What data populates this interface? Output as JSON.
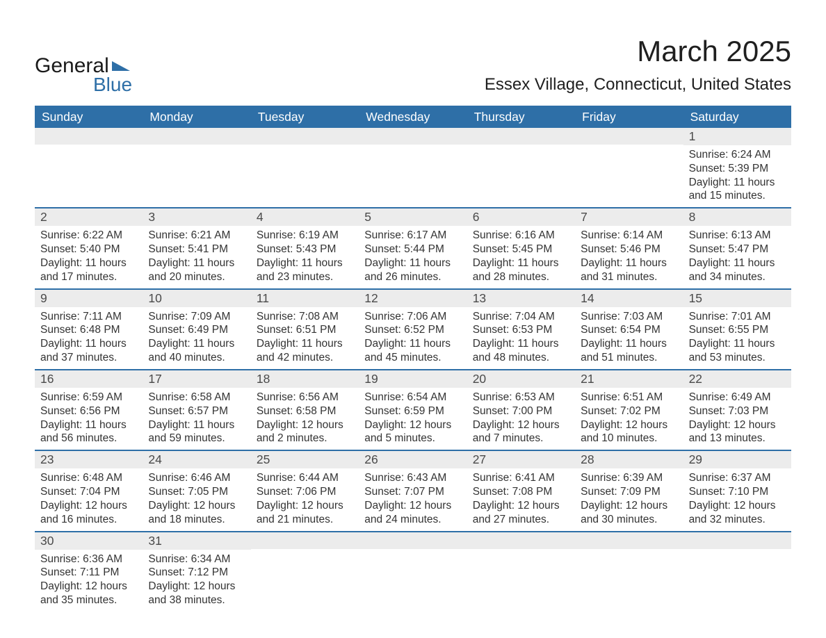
{
  "logo": {
    "word1": "General",
    "word2": "Blue",
    "word2_color": "#2e6fa7",
    "flag_color": "#2e6fa7"
  },
  "header": {
    "month_title": "March 2025",
    "location": "Essex Village, Connecticut, United States"
  },
  "colors": {
    "header_bg": "#2e6fa7",
    "header_text": "#ffffff",
    "daynum_bg": "#ececec",
    "text": "#333333",
    "week_border": "#2e6fa7",
    "page_bg": "#ffffff"
  },
  "fonts": {
    "month_title_pt": 42,
    "location_pt": 24,
    "dayname_pt": 17.5,
    "daynum_pt": 17.5,
    "details_pt": 15.5,
    "logo_pt": 30
  },
  "daynames": [
    "Sunday",
    "Monday",
    "Tuesday",
    "Wednesday",
    "Thursday",
    "Friday",
    "Saturday"
  ],
  "weeks": [
    [
      {
        "n": "",
        "sr": "",
        "ss": "",
        "dl": ""
      },
      {
        "n": "",
        "sr": "",
        "ss": "",
        "dl": ""
      },
      {
        "n": "",
        "sr": "",
        "ss": "",
        "dl": ""
      },
      {
        "n": "",
        "sr": "",
        "ss": "",
        "dl": ""
      },
      {
        "n": "",
        "sr": "",
        "ss": "",
        "dl": ""
      },
      {
        "n": "",
        "sr": "",
        "ss": "",
        "dl": ""
      },
      {
        "n": "1",
        "sr": "Sunrise: 6:24 AM",
        "ss": "Sunset: 5:39 PM",
        "dl": "Daylight: 11 hours and 15 minutes."
      }
    ],
    [
      {
        "n": "2",
        "sr": "Sunrise: 6:22 AM",
        "ss": "Sunset: 5:40 PM",
        "dl": "Daylight: 11 hours and 17 minutes."
      },
      {
        "n": "3",
        "sr": "Sunrise: 6:21 AM",
        "ss": "Sunset: 5:41 PM",
        "dl": "Daylight: 11 hours and 20 minutes."
      },
      {
        "n": "4",
        "sr": "Sunrise: 6:19 AM",
        "ss": "Sunset: 5:43 PM",
        "dl": "Daylight: 11 hours and 23 minutes."
      },
      {
        "n": "5",
        "sr": "Sunrise: 6:17 AM",
        "ss": "Sunset: 5:44 PM",
        "dl": "Daylight: 11 hours and 26 minutes."
      },
      {
        "n": "6",
        "sr": "Sunrise: 6:16 AM",
        "ss": "Sunset: 5:45 PM",
        "dl": "Daylight: 11 hours and 28 minutes."
      },
      {
        "n": "7",
        "sr": "Sunrise: 6:14 AM",
        "ss": "Sunset: 5:46 PM",
        "dl": "Daylight: 11 hours and 31 minutes."
      },
      {
        "n": "8",
        "sr": "Sunrise: 6:13 AM",
        "ss": "Sunset: 5:47 PM",
        "dl": "Daylight: 11 hours and 34 minutes."
      }
    ],
    [
      {
        "n": "9",
        "sr": "Sunrise: 7:11 AM",
        "ss": "Sunset: 6:48 PM",
        "dl": "Daylight: 11 hours and 37 minutes."
      },
      {
        "n": "10",
        "sr": "Sunrise: 7:09 AM",
        "ss": "Sunset: 6:49 PM",
        "dl": "Daylight: 11 hours and 40 minutes."
      },
      {
        "n": "11",
        "sr": "Sunrise: 7:08 AM",
        "ss": "Sunset: 6:51 PM",
        "dl": "Daylight: 11 hours and 42 minutes."
      },
      {
        "n": "12",
        "sr": "Sunrise: 7:06 AM",
        "ss": "Sunset: 6:52 PM",
        "dl": "Daylight: 11 hours and 45 minutes."
      },
      {
        "n": "13",
        "sr": "Sunrise: 7:04 AM",
        "ss": "Sunset: 6:53 PM",
        "dl": "Daylight: 11 hours and 48 minutes."
      },
      {
        "n": "14",
        "sr": "Sunrise: 7:03 AM",
        "ss": "Sunset: 6:54 PM",
        "dl": "Daylight: 11 hours and 51 minutes."
      },
      {
        "n": "15",
        "sr": "Sunrise: 7:01 AM",
        "ss": "Sunset: 6:55 PM",
        "dl": "Daylight: 11 hours and 53 minutes."
      }
    ],
    [
      {
        "n": "16",
        "sr": "Sunrise: 6:59 AM",
        "ss": "Sunset: 6:56 PM",
        "dl": "Daylight: 11 hours and 56 minutes."
      },
      {
        "n": "17",
        "sr": "Sunrise: 6:58 AM",
        "ss": "Sunset: 6:57 PM",
        "dl": "Daylight: 11 hours and 59 minutes."
      },
      {
        "n": "18",
        "sr": "Sunrise: 6:56 AM",
        "ss": "Sunset: 6:58 PM",
        "dl": "Daylight: 12 hours and 2 minutes."
      },
      {
        "n": "19",
        "sr": "Sunrise: 6:54 AM",
        "ss": "Sunset: 6:59 PM",
        "dl": "Daylight: 12 hours and 5 minutes."
      },
      {
        "n": "20",
        "sr": "Sunrise: 6:53 AM",
        "ss": "Sunset: 7:00 PM",
        "dl": "Daylight: 12 hours and 7 minutes."
      },
      {
        "n": "21",
        "sr": "Sunrise: 6:51 AM",
        "ss": "Sunset: 7:02 PM",
        "dl": "Daylight: 12 hours and 10 minutes."
      },
      {
        "n": "22",
        "sr": "Sunrise: 6:49 AM",
        "ss": "Sunset: 7:03 PM",
        "dl": "Daylight: 12 hours and 13 minutes."
      }
    ],
    [
      {
        "n": "23",
        "sr": "Sunrise: 6:48 AM",
        "ss": "Sunset: 7:04 PM",
        "dl": "Daylight: 12 hours and 16 minutes."
      },
      {
        "n": "24",
        "sr": "Sunrise: 6:46 AM",
        "ss": "Sunset: 7:05 PM",
        "dl": "Daylight: 12 hours and 18 minutes."
      },
      {
        "n": "25",
        "sr": "Sunrise: 6:44 AM",
        "ss": "Sunset: 7:06 PM",
        "dl": "Daylight: 12 hours and 21 minutes."
      },
      {
        "n": "26",
        "sr": "Sunrise: 6:43 AM",
        "ss": "Sunset: 7:07 PM",
        "dl": "Daylight: 12 hours and 24 minutes."
      },
      {
        "n": "27",
        "sr": "Sunrise: 6:41 AM",
        "ss": "Sunset: 7:08 PM",
        "dl": "Daylight: 12 hours and 27 minutes."
      },
      {
        "n": "28",
        "sr": "Sunrise: 6:39 AM",
        "ss": "Sunset: 7:09 PM",
        "dl": "Daylight: 12 hours and 30 minutes."
      },
      {
        "n": "29",
        "sr": "Sunrise: 6:37 AM",
        "ss": "Sunset: 7:10 PM",
        "dl": "Daylight: 12 hours and 32 minutes."
      }
    ],
    [
      {
        "n": "30",
        "sr": "Sunrise: 6:36 AM",
        "ss": "Sunset: 7:11 PM",
        "dl": "Daylight: 12 hours and 35 minutes."
      },
      {
        "n": "31",
        "sr": "Sunrise: 6:34 AM",
        "ss": "Sunset: 7:12 PM",
        "dl": "Daylight: 12 hours and 38 minutes."
      },
      {
        "n": "",
        "sr": "",
        "ss": "",
        "dl": ""
      },
      {
        "n": "",
        "sr": "",
        "ss": "",
        "dl": ""
      },
      {
        "n": "",
        "sr": "",
        "ss": "",
        "dl": ""
      },
      {
        "n": "",
        "sr": "",
        "ss": "",
        "dl": ""
      },
      {
        "n": "",
        "sr": "",
        "ss": "",
        "dl": ""
      }
    ]
  ]
}
